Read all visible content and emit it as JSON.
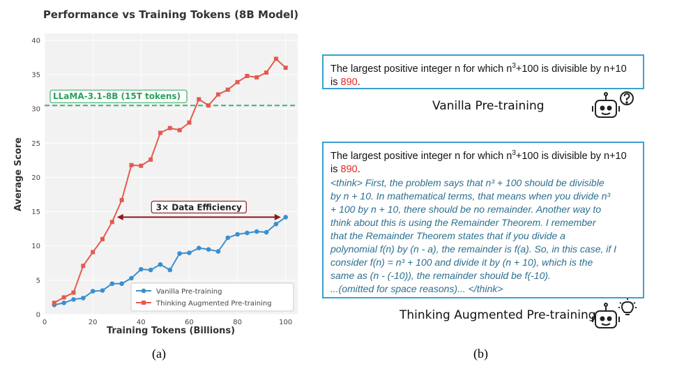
{
  "chart_data": {
    "type": "line",
    "title": "Performance vs Training Tokens (8B Model)",
    "xlabel": "Training Tokens (Billions)",
    "ylabel": "Average Score",
    "xlim": [
      0,
      105
    ],
    "ylim": [
      0,
      41
    ],
    "xticks": [
      0,
      20,
      40,
      60,
      80,
      100
    ],
    "yticks": [
      0,
      5,
      10,
      15,
      20,
      25,
      30,
      35,
      40
    ],
    "grid": true,
    "legend_position": "lower-right",
    "series": [
      {
        "name": "Vanilla Pre-training",
        "color": "#3a8fd0",
        "marker": "circle",
        "x": [
          4,
          8,
          12,
          16,
          20,
          24,
          28,
          32,
          36,
          40,
          44,
          48,
          52,
          56,
          60,
          64,
          68,
          72,
          76,
          80,
          84,
          88,
          92,
          96,
          100
        ],
        "y": [
          1.4,
          1.7,
          2.2,
          2.4,
          3.4,
          3.5,
          4.5,
          4.5,
          5.3,
          6.6,
          6.5,
          7.3,
          6.5,
          8.9,
          9.0,
          9.7,
          9.5,
          9.2,
          11.2,
          11.7,
          11.9,
          12.1,
          12.0,
          13.2,
          14.2
        ]
      },
      {
        "name": "Thinking Augmented Pre-training",
        "color": "#e35a4f",
        "marker": "square",
        "x": [
          4,
          8,
          12,
          16,
          20,
          24,
          28,
          32,
          36,
          40,
          44,
          48,
          52,
          56,
          60,
          64,
          68,
          72,
          76,
          80,
          84,
          88,
          92,
          96,
          100
        ],
        "y": [
          1.7,
          2.5,
          3.2,
          7.1,
          9.1,
          11.0,
          13.5,
          16.7,
          21.8,
          21.7,
          22.6,
          26.5,
          27.2,
          26.9,
          28.0,
          31.4,
          30.5,
          32.1,
          32.8,
          33.9,
          34.8,
          34.6,
          35.3,
          37.3,
          36.0
        ]
      }
    ],
    "reference_line": {
      "label": "LLaMA-3.1-8B (15T tokens)",
      "y": 30.5,
      "color": "#3cb371"
    },
    "annotation": {
      "label": "3× Data Efficiency",
      "x_from": 30,
      "x_to": 98,
      "y": 14.2,
      "color": "#8b1a1a"
    },
    "caption": "(a)"
  },
  "panel_b": {
    "caption": "(b)",
    "vanilla": {
      "answer_prefix": "The largest positive integer n for which n",
      "answer_sup": "3",
      "answer_mid": "+100 is divisible by n+10 is ",
      "answer_value": "890",
      "answer_end": ".",
      "label": "Vanilla Pre-training"
    },
    "thinking": {
      "answer_prefix": "The largest positive integer n for which n",
      "answer_sup": "3",
      "answer_mid": "+100 is divisible by n+10 is ",
      "answer_value": "890",
      "answer_end": ".",
      "think_lines": [
        "<think> First, the problem says that n³ + 100 should be divisible",
        "by n + 10. In mathematical terms, that means when you divide n³",
        "+ 100 by n + 10, there should be no remainder. Another way to",
        "think about this is using the Remainder Theorem. I remember",
        "that the Remainder Theorem states that if you divide a",
        "polynomial f(n) by (n - a), the remainder is f(a). So, in this case, if I",
        "consider f(n) = n³ + 100 and divide it by (n + 10), which is the",
        "same as (n - (-10)), the remainder should be f(-10).",
        "...(omitted for space reasons)... </think>"
      ],
      "label": "Thinking Augmented Pre-training"
    }
  }
}
